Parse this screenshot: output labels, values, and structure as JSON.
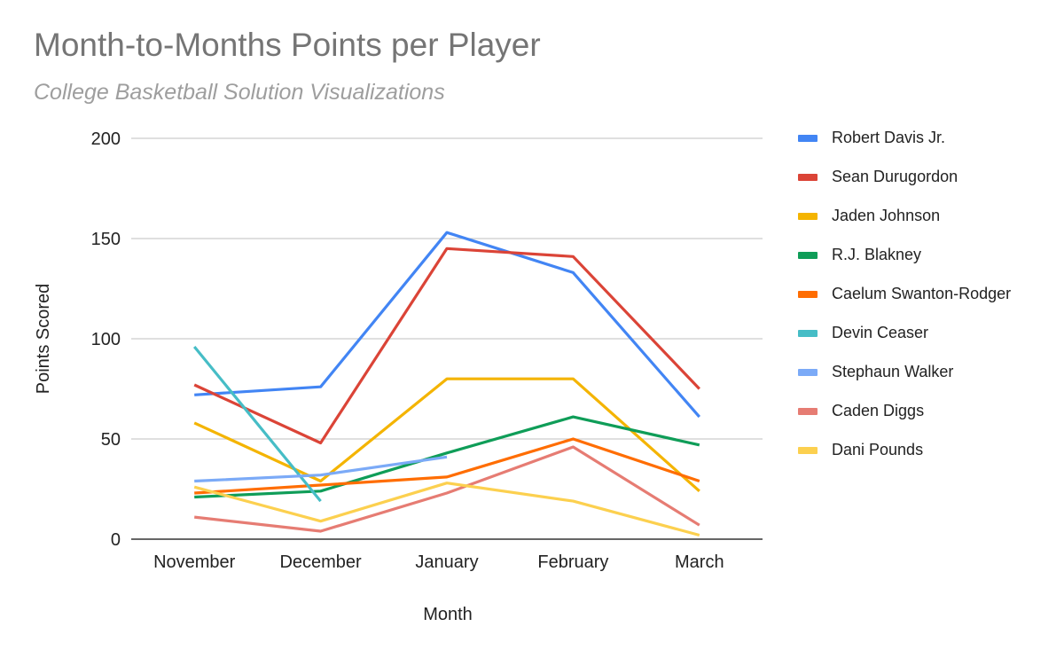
{
  "chart_data": {
    "type": "line",
    "title": "Month-to-Months Points per Player",
    "subtitle": "College Basketball Solution Visualizations",
    "xlabel": "Month",
    "ylabel": "Points Scored",
    "categories": [
      "November",
      "December",
      "January",
      "February",
      "March"
    ],
    "ylim": [
      0,
      200
    ],
    "yticks": [
      0,
      50,
      100,
      150,
      200
    ],
    "grid": true,
    "legend_position": "right",
    "series": [
      {
        "name": "Robert Davis Jr.",
        "color": "#4285f4",
        "values": [
          72,
          76,
          153,
          133,
          61
        ]
      },
      {
        "name": "Sean Durugordon",
        "color": "#db4437",
        "values": [
          77,
          48,
          145,
          141,
          75
        ]
      },
      {
        "name": "Jaden Johnson",
        "color": "#f4b400",
        "values": [
          58,
          29,
          80,
          80,
          24
        ]
      },
      {
        "name": "R.J. Blakney",
        "color": "#0f9d58",
        "values": [
          21,
          24,
          43,
          61,
          47
        ]
      },
      {
        "name": "Caelum Swanton-Rodger",
        "color": "#ff6d01",
        "values": [
          23,
          27,
          31,
          50,
          29
        ]
      },
      {
        "name": "Devin Ceaser",
        "color": "#46bdc6",
        "values": [
          96,
          19,
          null,
          null,
          null
        ]
      },
      {
        "name": "Stephaun Walker",
        "color": "#7baaf7",
        "values": [
          29,
          32,
          41,
          null,
          null
        ]
      },
      {
        "name": "Caden Diggs",
        "color": "#e67c73",
        "values": [
          11,
          4,
          23,
          46,
          7
        ]
      },
      {
        "name": "Dani Pounds",
        "color": "#fcd04f",
        "values": [
          26,
          9,
          28,
          19,
          2
        ]
      }
    ]
  }
}
